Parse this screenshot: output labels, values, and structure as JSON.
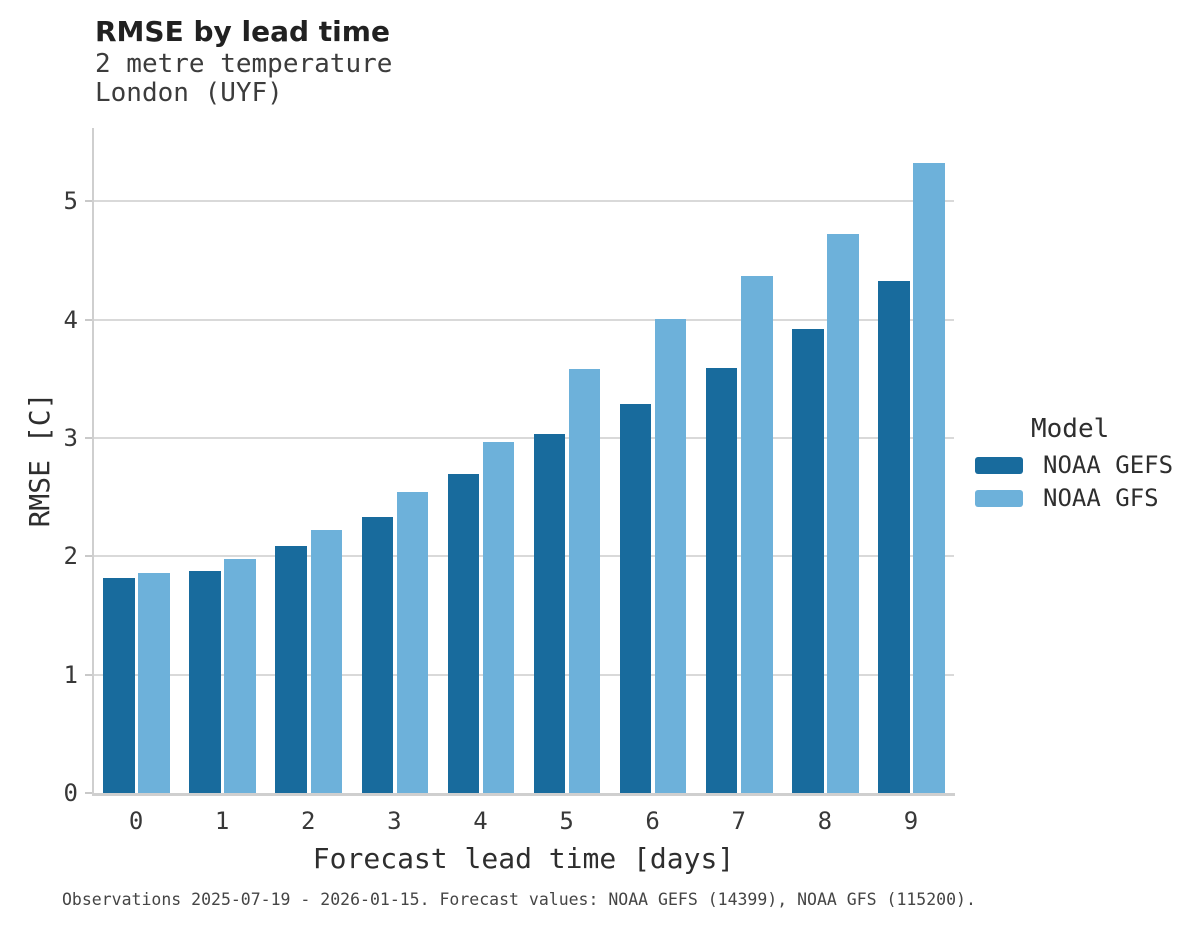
{
  "header": {
    "title": "RMSE by lead time",
    "subtitle_line1": "2 metre temperature",
    "subtitle_line2": "London (UYF)"
  },
  "chart_data": {
    "type": "bar",
    "title": "RMSE by lead time",
    "subtitle": [
      "2 metre temperature",
      "London (UYF)"
    ],
    "categories": [
      "0",
      "1",
      "2",
      "3",
      "4",
      "5",
      "6",
      "7",
      "8",
      "9"
    ],
    "series": [
      {
        "name": "NOAA GEFS",
        "color": "#186b9d",
        "values": [
          1.82,
          1.88,
          2.09,
          2.33,
          2.7,
          3.03,
          3.29,
          3.59,
          3.92,
          4.33
        ]
      },
      {
        "name": "NOAA GFS",
        "color": "#6db1da",
        "values": [
          1.86,
          1.98,
          2.22,
          2.54,
          2.97,
          3.58,
          4.01,
          4.37,
          4.72,
          5.32
        ]
      }
    ],
    "xlabel": "Forecast lead time [days]",
    "ylabel": "RMSE [C]",
    "ylim": [
      0,
      5.62
    ],
    "yticks": [
      0,
      1,
      2,
      3,
      4,
      5
    ],
    "grid": "horizontal",
    "legend": {
      "title": "Model",
      "position": "right"
    }
  },
  "footnote": "Observations 2025-07-19 - 2026-01-15. Forecast values: NOAA GEFS (14399), NOAA GFS (115200)."
}
